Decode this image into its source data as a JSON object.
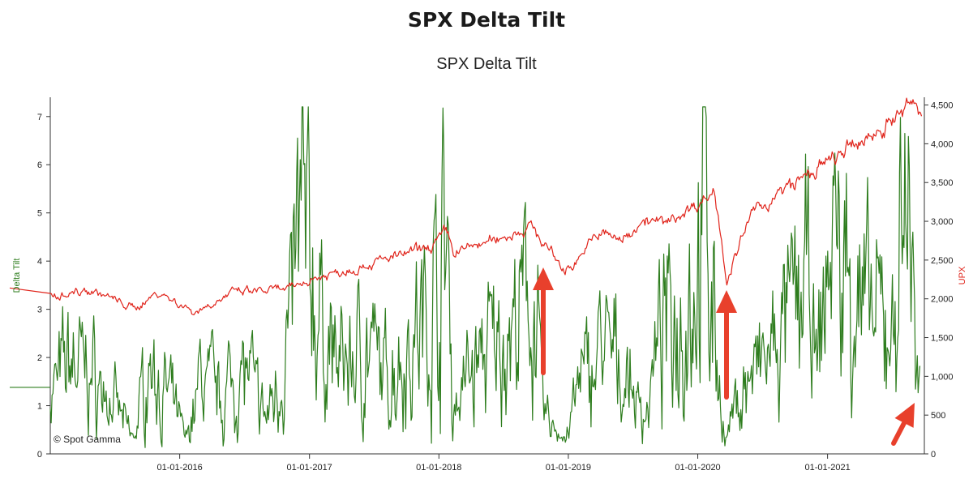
{
  "page": {
    "title": "SPX Delta Tilt"
  },
  "chart_data": {
    "type": "line",
    "title": "SPX Delta Tilt",
    "xlabel": "",
    "y_left_label": "Delta Tilt",
    "y_right_label": "UPX",
    "x_range": [
      "2015-01-01",
      "2021-10-01"
    ],
    "y_left_range": [
      0,
      7.4
    ],
    "y_right_range": [
      0,
      4600
    ],
    "x_ticks": [
      "01-01-2016",
      "01-01-2017",
      "01-01-2018",
      "01-01-2019",
      "01-01-2020",
      "01-01-2021"
    ],
    "y_left_ticks": [
      "0",
      "1",
      "2",
      "3",
      "4",
      "5",
      "6",
      "7"
    ],
    "y_right_ticks": [
      "0",
      "500",
      "1,000",
      "1,500",
      "2,000",
      "2,500",
      "3,000",
      "3,500",
      "4,000",
      "4,500"
    ],
    "grid": false,
    "legend": "none",
    "colors": {
      "delta_tilt": "#2e7d1e",
      "upx": "#e0241b",
      "arrow": "#e8402c"
    },
    "series": [
      {
        "name": "Delta Tilt",
        "axis": "left",
        "x": [
          "2015-01-01",
          "2015-03-01",
          "2015-05-01",
          "2015-07-01",
          "2015-08-25",
          "2015-10-01",
          "2015-12-01",
          "2016-01-20",
          "2016-03-01",
          "2016-05-01",
          "2016-07-01",
          "2016-09-01",
          "2016-11-01",
          "2016-12-10",
          "2017-02-01",
          "2017-04-01",
          "2017-06-01",
          "2017-08-01",
          "2017-10-01",
          "2017-12-01",
          "2018-01-26",
          "2018-02-08",
          "2018-04-01",
          "2018-06-01",
          "2018-08-01",
          "2018-09-25",
          "2018-10-25",
          "2018-12-24",
          "2019-02-01",
          "2019-04-01",
          "2019-06-01",
          "2019-08-01",
          "2019-10-01",
          "2019-12-20",
          "2020-01-20",
          "2020-03-18",
          "2020-05-01",
          "2020-07-01",
          "2020-08-25",
          "2020-10-30",
          "2020-12-01",
          "2021-01-10",
          "2021-03-01",
          "2021-05-01",
          "2021-07-01",
          "2021-08-20",
          "2021-09-05",
          "2021-09-20"
        ],
        "values": [
          1.2,
          2.0,
          1.6,
          1.0,
          0.3,
          1.8,
          1.2,
          0.3,
          1.6,
          1.2,
          1.8,
          0.7,
          2.3,
          5.0,
          2.6,
          1.8,
          2.2,
          1.6,
          2.2,
          2.8,
          4.4,
          0.9,
          1.8,
          2.2,
          2.5,
          3.3,
          0.8,
          0.3,
          1.4,
          2.2,
          1.8,
          0.8,
          2.6,
          3.4,
          5.2,
          0.2,
          1.3,
          1.8,
          2.2,
          3.8,
          1.5,
          4.6,
          3.6,
          2.8,
          2.5,
          6.2,
          1.5,
          1.0
        ]
      },
      {
        "name": "UPX",
        "axis": "right",
        "x": [
          "2015-01-01",
          "2015-05-01",
          "2015-08-25",
          "2015-11-01",
          "2016-02-11",
          "2016-06-01",
          "2016-11-05",
          "2017-01-01",
          "2017-06-01",
          "2017-12-01",
          "2018-01-26",
          "2018-02-09",
          "2018-06-01",
          "2018-09-20",
          "2018-12-24",
          "2019-04-01",
          "2019-06-03",
          "2019-07-26",
          "2019-10-01",
          "2020-01-01",
          "2020-02-19",
          "2020-03-23",
          "2020-06-01",
          "2020-09-01",
          "2020-12-31",
          "2021-04-01",
          "2021-08-01",
          "2021-09-02",
          "2021-09-25"
        ],
        "values": [
          2050,
          2110,
          1870,
          2090,
          1830,
          2080,
          2120,
          2250,
          2430,
          2650,
          2870,
          2600,
          2750,
          2930,
          2350,
          2860,
          2750,
          3020,
          2970,
          3230,
          3390,
          2240,
          3100,
          3400,
          3750,
          4000,
          4400,
          4540,
          4370
        ]
      }
    ],
    "annotations": [
      {
        "type": "arrow",
        "direction": "up",
        "near": "2018-10"
      },
      {
        "type": "arrow",
        "direction": "up",
        "near": "2020-03"
      },
      {
        "type": "arrow",
        "direction": "up-right",
        "near": "2021-09"
      }
    ],
    "watermark": "© Spot Gamma"
  }
}
